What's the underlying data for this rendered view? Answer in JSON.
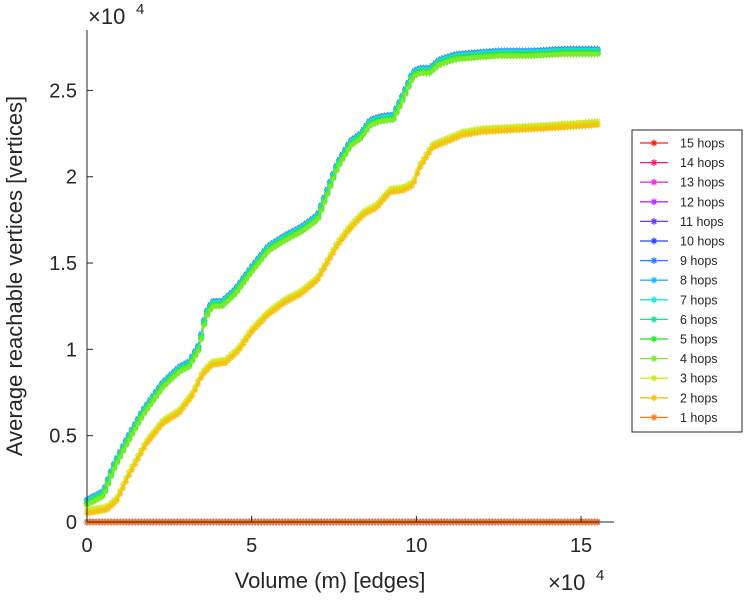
{
  "chart_data": {
    "type": "line",
    "title": "",
    "xlabel": "Volume (m) [edges]",
    "ylabel": "Average reachable vertices [vertices]",
    "x_multiplier": {
      "base": "×10",
      "exponent": "4"
    },
    "y_multiplier": {
      "base": "×10",
      "exponent": "4"
    },
    "xlim": [
      0,
      16
    ],
    "ylim": [
      0,
      2.85
    ],
    "x_ticks": [
      {
        "value": 0,
        "label": "0"
      },
      {
        "value": 5,
        "label": "5"
      },
      {
        "value": 10,
        "label": "10"
      },
      {
        "value": 15,
        "label": "15"
      }
    ],
    "y_ticks": [
      {
        "value": 0,
        "label": "0"
      },
      {
        "value": 0.5,
        "label": "0.5"
      },
      {
        "value": 1,
        "label": "1"
      },
      {
        "value": 1.5,
        "label": "1.5"
      },
      {
        "value": 2,
        "label": "2"
      },
      {
        "value": 2.5,
        "label": "2.5"
      }
    ],
    "legend_position": "right",
    "curves": {
      "high": {
        "x": [
          0,
          0.5,
          0.8,
          1.2,
          1.7,
          2.3,
          2.8,
          3.1,
          3.4,
          3.6,
          3.8,
          4.1,
          4.5,
          5.0,
          5.5,
          6.0,
          6.5,
          7.0,
          7.3,
          7.6,
          8.0,
          8.3,
          8.6,
          8.9,
          9.3,
          9.6,
          9.9,
          10.1,
          10.4,
          10.7,
          11.2,
          11.8,
          12.5,
          13.5,
          14.5,
          15.5
        ],
        "y": [
          0.1,
          0.15,
          0.3,
          0.45,
          0.62,
          0.78,
          0.87,
          0.9,
          1.0,
          1.18,
          1.25,
          1.25,
          1.32,
          1.45,
          1.57,
          1.63,
          1.68,
          1.75,
          1.9,
          2.05,
          2.18,
          2.22,
          2.3,
          2.32,
          2.33,
          2.45,
          2.58,
          2.6,
          2.6,
          2.65,
          2.68,
          2.69,
          2.7,
          2.7,
          2.71,
          2.71
        ]
      },
      "mid": {
        "x": [
          0,
          0.3,
          0.6,
          0.9,
          1.3,
          1.8,
          2.3,
          2.8,
          3.2,
          3.5,
          3.8,
          4.2,
          4.6,
          5.0,
          5.5,
          6.0,
          6.5,
          7.0,
          7.3,
          7.6,
          8.0,
          8.4,
          8.8,
          9.2,
          9.6,
          9.9,
          10.1,
          10.5,
          10.9,
          11.4,
          12.0,
          13.0,
          14.0,
          15.5
        ],
        "y": [
          0.05,
          0.06,
          0.07,
          0.12,
          0.28,
          0.45,
          0.57,
          0.63,
          0.73,
          0.85,
          0.91,
          0.92,
          0.99,
          1.1,
          1.2,
          1.27,
          1.32,
          1.4,
          1.5,
          1.6,
          1.7,
          1.78,
          1.82,
          1.91,
          1.92,
          1.95,
          2.05,
          2.17,
          2.2,
          2.24,
          2.26,
          2.27,
          2.28,
          2.3
        ]
      },
      "flat": {
        "x": [
          0,
          15.5
        ],
        "y": [
          0.0,
          0.0
        ]
      }
    },
    "series": [
      {
        "name": "15 hops",
        "color": "#ff1c1c",
        "curve": "flat",
        "offset": 0
      },
      {
        "name": "14 hops",
        "color": "#ff1478",
        "curve": "flat",
        "offset": 0
      },
      {
        "name": "13 hops",
        "color": "#f02ce6",
        "curve": "flat",
        "offset": 0
      },
      {
        "name": "12 hops",
        "color": "#bb2cff",
        "curve": "flat",
        "offset": 0
      },
      {
        "name": "11 hops",
        "color": "#6c37ff",
        "curve": "flat",
        "offset": 0
      },
      {
        "name": "10 hops",
        "color": "#2741ff",
        "curve": "flat",
        "offset": 0
      },
      {
        "name": "9 hops",
        "color": "#2a7bff",
        "curve": "high",
        "offset": 0.03
      },
      {
        "name": "8 hops",
        "color": "#1fb4ff",
        "curve": "high",
        "offset": 0.025
      },
      {
        "name": "7 hops",
        "color": "#1ee6d2",
        "curve": "high",
        "offset": 0.02
      },
      {
        "name": "6 hops",
        "color": "#13e38c",
        "curve": "high",
        "offset": 0.012
      },
      {
        "name": "5 hops",
        "color": "#1ee81e",
        "curve": "high",
        "offset": 0.005
      },
      {
        "name": "4 hops",
        "color": "#80e82d",
        "curve": "high",
        "offset": 0.0
      },
      {
        "name": "3 hops",
        "color": "#d2e81e",
        "curve": "mid",
        "offset": 0.02
      },
      {
        "name": "2 hops",
        "color": "#f5c20f",
        "curve": "mid",
        "offset": 0.0
      },
      {
        "name": "1 hops",
        "color": "#ff7a1a",
        "curve": "flat",
        "offset": 0.0
      }
    ]
  }
}
